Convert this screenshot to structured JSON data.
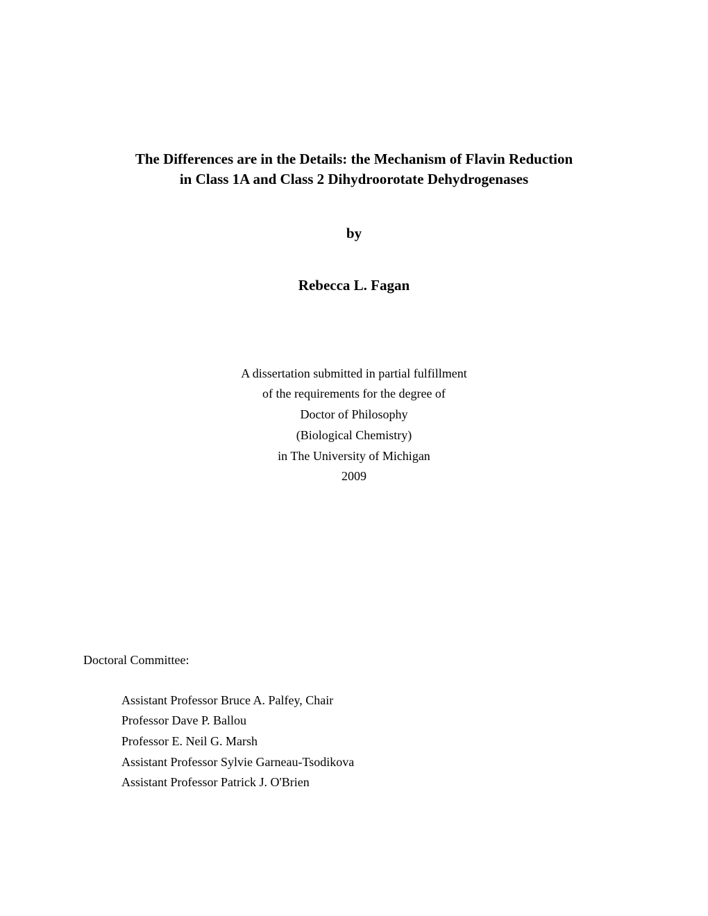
{
  "title": {
    "line1": "The Differences are in the Details: the Mechanism of Flavin Reduction",
    "line2": "in Class 1A and Class 2 Dihydroorotate Dehydrogenases"
  },
  "by_label": "by",
  "author": "Rebecca L. Fagan",
  "submission": {
    "line1": "A dissertation submitted in partial fulfillment",
    "line2": "of the requirements for the degree of",
    "line3": "Doctor of Philosophy",
    "line4": "(Biological Chemistry)",
    "line5": "in The University of Michigan",
    "line6": "2009"
  },
  "committee": {
    "heading": "Doctoral Committee:",
    "members": [
      "Assistant Professor Bruce A. Palfey, Chair",
      "Professor Dave P. Ballou",
      "Professor E. Neil G. Marsh",
      "Assistant Professor Sylvie Garneau-Tsodikova",
      "Assistant Professor Patrick J. O'Brien"
    ]
  }
}
